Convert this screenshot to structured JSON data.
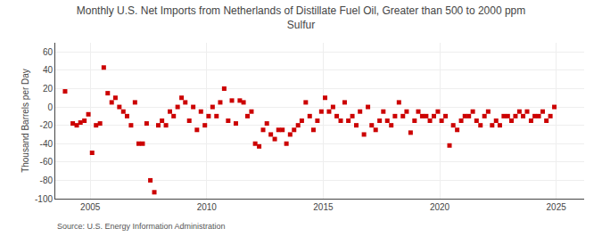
{
  "chart_data": {
    "type": "scatter",
    "title": "Monthly U.S. Net Imports from Netherlands of Distillate Fuel Oil, Greater than 500 to 2000 ppm\nSulfur",
    "ylabel": "Thousand Barrels per Day",
    "source": "Source: U.S. Energy Information Administration",
    "color": "#cc0000",
    "marker": "square",
    "grid": true,
    "xlim": [
      2003.5,
      2026.2
    ],
    "xticks": [
      2005,
      2010,
      2015,
      2020,
      2025
    ],
    "ylim": [
      -100,
      70
    ],
    "yticks": [
      -100,
      -80,
      -60,
      -40,
      -20,
      0,
      20,
      40,
      60
    ],
    "x": [
      2003.92,
      2004.25,
      2004.42,
      2004.58,
      2004.75,
      2004.92,
      2005.08,
      2005.25,
      2005.42,
      2005.58,
      2005.75,
      2005.92,
      2006.08,
      2006.25,
      2006.42,
      2006.58,
      2006.75,
      2006.92,
      2007.08,
      2007.25,
      2007.42,
      2007.58,
      2007.75,
      2007.92,
      2008.08,
      2008.25,
      2008.42,
      2008.58,
      2008.75,
      2008.92,
      2009.08,
      2009.25,
      2009.42,
      2009.58,
      2009.75,
      2009.92,
      2010.08,
      2010.25,
      2010.42,
      2010.58,
      2010.75,
      2010.92,
      2011.08,
      2011.25,
      2011.42,
      2011.58,
      2011.75,
      2011.92,
      2012.08,
      2012.25,
      2012.42,
      2012.58,
      2012.75,
      2012.92,
      2013.08,
      2013.25,
      2013.42,
      2013.58,
      2013.75,
      2013.92,
      2014.08,
      2014.25,
      2014.42,
      2014.58,
      2014.75,
      2014.92,
      2015.08,
      2015.25,
      2015.42,
      2015.58,
      2015.75,
      2015.92,
      2016.08,
      2016.25,
      2016.42,
      2016.58,
      2016.75,
      2016.92,
      2017.08,
      2017.25,
      2017.42,
      2017.58,
      2017.75,
      2017.92,
      2018.08,
      2018.25,
      2018.42,
      2018.58,
      2018.75,
      2018.92,
      2019.08,
      2019.25,
      2019.42,
      2019.58,
      2019.75,
      2019.92,
      2020.08,
      2020.25,
      2020.42,
      2020.58,
      2020.75,
      2020.92,
      2021.08,
      2021.25,
      2021.42,
      2021.58,
      2021.75,
      2021.92,
      2022.08,
      2022.25,
      2022.42,
      2022.58,
      2022.75,
      2022.92,
      2023.08,
      2023.25,
      2023.42,
      2023.58,
      2023.75,
      2023.92,
      2024.08,
      2024.25,
      2024.42,
      2024.58,
      2024.75,
      2024.92
    ],
    "values": [
      17,
      -18,
      -20,
      -17,
      -15,
      -8,
      -50,
      -20,
      -18,
      43,
      15,
      5,
      10,
      0,
      -5,
      -10,
      -20,
      5,
      -40,
      -40,
      -18,
      -80,
      -93,
      -20,
      -15,
      -20,
      -5,
      -10,
      0,
      10,
      5,
      -15,
      0,
      -25,
      -5,
      -20,
      -10,
      0,
      -10,
      5,
      20,
      -15,
      7,
      -18,
      7,
      5,
      -10,
      -5,
      -40,
      -43,
      -25,
      -18,
      -30,
      -35,
      -25,
      -25,
      -40,
      -30,
      -25,
      -20,
      -15,
      5,
      -10,
      -25,
      -15,
      -5,
      10,
      -5,
      0,
      -10,
      -15,
      5,
      -15,
      -10,
      -20,
      -5,
      -30,
      0,
      -20,
      -25,
      -15,
      -5,
      -15,
      -20,
      -10,
      5,
      -10,
      -5,
      -28,
      -15,
      -5,
      -10,
      -10,
      -15,
      -10,
      -5,
      -15,
      -10,
      -42,
      -20,
      -25,
      -15,
      -10,
      -10,
      -5,
      -15,
      -20,
      -10,
      -5,
      -20,
      -15,
      -20,
      -10,
      -10,
      -15,
      -10,
      -5,
      -10,
      -5,
      -15,
      -10,
      -10,
      -5,
      -15,
      -10,
      0
    ]
  }
}
